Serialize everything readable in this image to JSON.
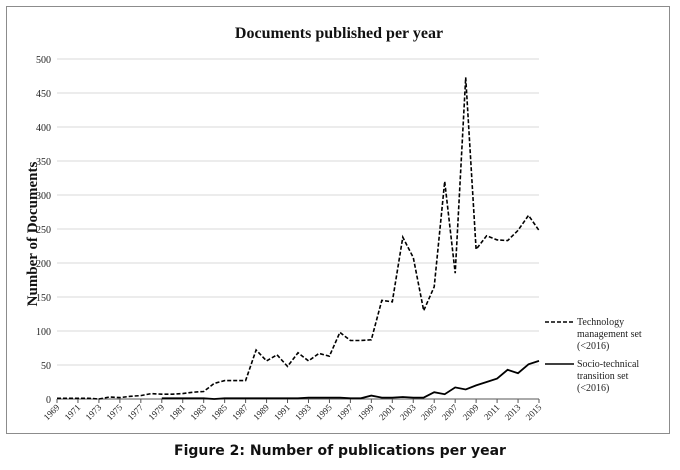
{
  "chart_data": {
    "type": "line",
    "title": "Documents published per year",
    "xlabel": "",
    "ylabel": "Number of Documents",
    "ylim": [
      0,
      500
    ],
    "y_ticks": [
      0,
      50,
      100,
      150,
      200,
      250,
      300,
      350,
      400,
      450,
      500
    ],
    "x": [
      1969,
      1970,
      1971,
      1972,
      1973,
      1974,
      1975,
      1976,
      1977,
      1978,
      1979,
      1980,
      1981,
      1982,
      1983,
      1984,
      1985,
      1986,
      1987,
      1988,
      1989,
      1990,
      1991,
      1992,
      1993,
      1994,
      1995,
      1996,
      1997,
      1998,
      1999,
      2000,
      2001,
      2002,
      2003,
      2004,
      2005,
      2006,
      2007,
      2008,
      2009,
      2010,
      2011,
      2012,
      2013,
      2014,
      2015
    ],
    "x_tick_labels": [
      "1969",
      "1971",
      "1973",
      "1975",
      "1977",
      "1979",
      "1981",
      "1983",
      "1985",
      "1987",
      "1989",
      "1991",
      "1993",
      "1995",
      "1997",
      "1999",
      "2001",
      "2003",
      "2005",
      "2007",
      "2009",
      "2011",
      "2013",
      "2015"
    ],
    "grid": "horizontal",
    "legend_position": "right",
    "series": [
      {
        "name": "Technology management set (<2016)",
        "style": "dashed",
        "color": "#000000",
        "values": [
          1,
          1,
          1,
          1,
          0,
          3,
          2,
          4,
          5,
          8,
          7,
          7,
          8,
          10,
          11,
          23,
          27,
          27,
          27,
          72,
          56,
          65,
          48,
          68,
          56,
          67,
          63,
          98,
          86,
          86,
          87,
          145,
          143,
          238,
          208,
          130,
          165,
          320,
          185,
          473,
          220,
          240,
          234,
          233,
          248,
          270,
          248
        ]
      },
      {
        "name": "Socio-technical transition set (<2016)",
        "style": "solid",
        "color": "#000000",
        "values": [
          null,
          null,
          null,
          null,
          null,
          null,
          null,
          null,
          null,
          null,
          1,
          1,
          1,
          1,
          1,
          0,
          1,
          1,
          1,
          1,
          1,
          1,
          1,
          1,
          2,
          2,
          2,
          2,
          1,
          1,
          5,
          2,
          2,
          3,
          2,
          2,
          10,
          7,
          17,
          14,
          20,
          25,
          30,
          43,
          38,
          51,
          56
        ]
      }
    ]
  },
  "caption": "Figure 2: Number of publications per year"
}
